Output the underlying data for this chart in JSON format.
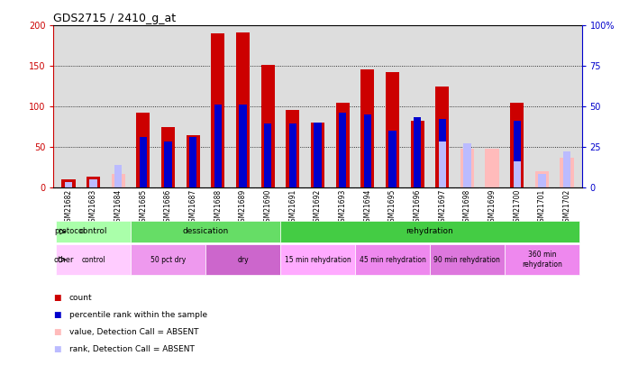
{
  "title": "GDS2715 / 2410_g_at",
  "samples": [
    "GSM21682",
    "GSM21683",
    "GSM21684",
    "GSM21685",
    "GSM21686",
    "GSM21687",
    "GSM21688",
    "GSM21689",
    "GSM21690",
    "GSM21691",
    "GSM21692",
    "GSM21693",
    "GSM21694",
    "GSM21695",
    "GSM21696",
    "GSM21697",
    "GSM21698",
    "GSM21699",
    "GSM21700",
    "GSM21701",
    "GSM21702"
  ],
  "count_values": [
    10,
    14,
    0,
    93,
    75,
    65,
    190,
    192,
    152,
    96,
    80,
    105,
    146,
    142,
    82,
    125,
    0,
    0,
    105,
    0,
    0
  ],
  "rank_values": [
    7,
    7,
    0,
    63,
    57,
    63,
    102,
    103,
    79,
    79,
    80,
    92,
    90,
    70,
    87,
    85,
    0,
    0,
    83,
    0,
    0
  ],
  "absent_count": [
    0,
    0,
    17,
    0,
    0,
    0,
    0,
    0,
    0,
    0,
    0,
    0,
    0,
    0,
    0,
    0,
    48,
    48,
    0,
    20,
    37
  ],
  "absent_rank": [
    7,
    10,
    28,
    0,
    0,
    0,
    0,
    0,
    0,
    0,
    0,
    0,
    0,
    0,
    0,
    57,
    55,
    0,
    32,
    17,
    45
  ],
  "count_color": "#cc0000",
  "rank_color": "#0000cc",
  "absent_count_color": "#ffbbbb",
  "absent_rank_color": "#bbbbff",
  "ylim_left": [
    0,
    200
  ],
  "ylim_right": [
    0,
    100
  ],
  "yticks_left": [
    0,
    50,
    100,
    150,
    200
  ],
  "ytick_labels_left": [
    "0",
    "50",
    "100",
    "150",
    "200"
  ],
  "yticks_right": [
    0,
    25,
    50,
    75,
    100
  ],
  "ytick_labels_right": [
    "0",
    "25",
    "50",
    "75",
    "100%"
  ],
  "protocol_groups": [
    {
      "label": "control",
      "start": 0,
      "end": 3,
      "color": "#aaffaa"
    },
    {
      "label": "dessication",
      "start": 3,
      "end": 9,
      "color": "#66dd66"
    },
    {
      "label": "rehydration",
      "start": 9,
      "end": 21,
      "color": "#44cc44"
    }
  ],
  "other_groups": [
    {
      "label": "control",
      "start": 0,
      "end": 3,
      "color": "#ffccff"
    },
    {
      "label": "50 pct dry",
      "start": 3,
      "end": 6,
      "color": "#ee99ee"
    },
    {
      "label": "dry",
      "start": 6,
      "end": 9,
      "color": "#cc66cc"
    },
    {
      "label": "15 min rehydration",
      "start": 9,
      "end": 12,
      "color": "#ffaaff"
    },
    {
      "label": "45 min rehydration",
      "start": 12,
      "end": 15,
      "color": "#ee88ee"
    },
    {
      "label": "90 min rehydration",
      "start": 15,
      "end": 18,
      "color": "#dd77dd"
    },
    {
      "label": "360 min\nrehydration",
      "start": 18,
      "end": 21,
      "color": "#ee88ee"
    }
  ],
  "bar_width": 0.55,
  "rank_bar_width": 0.3,
  "background_color": "#ffffff",
  "plot_bg_color": "#dddddd",
  "title_fontsize": 9,
  "axis_color_left": "#cc0000",
  "axis_color_right": "#0000cc"
}
